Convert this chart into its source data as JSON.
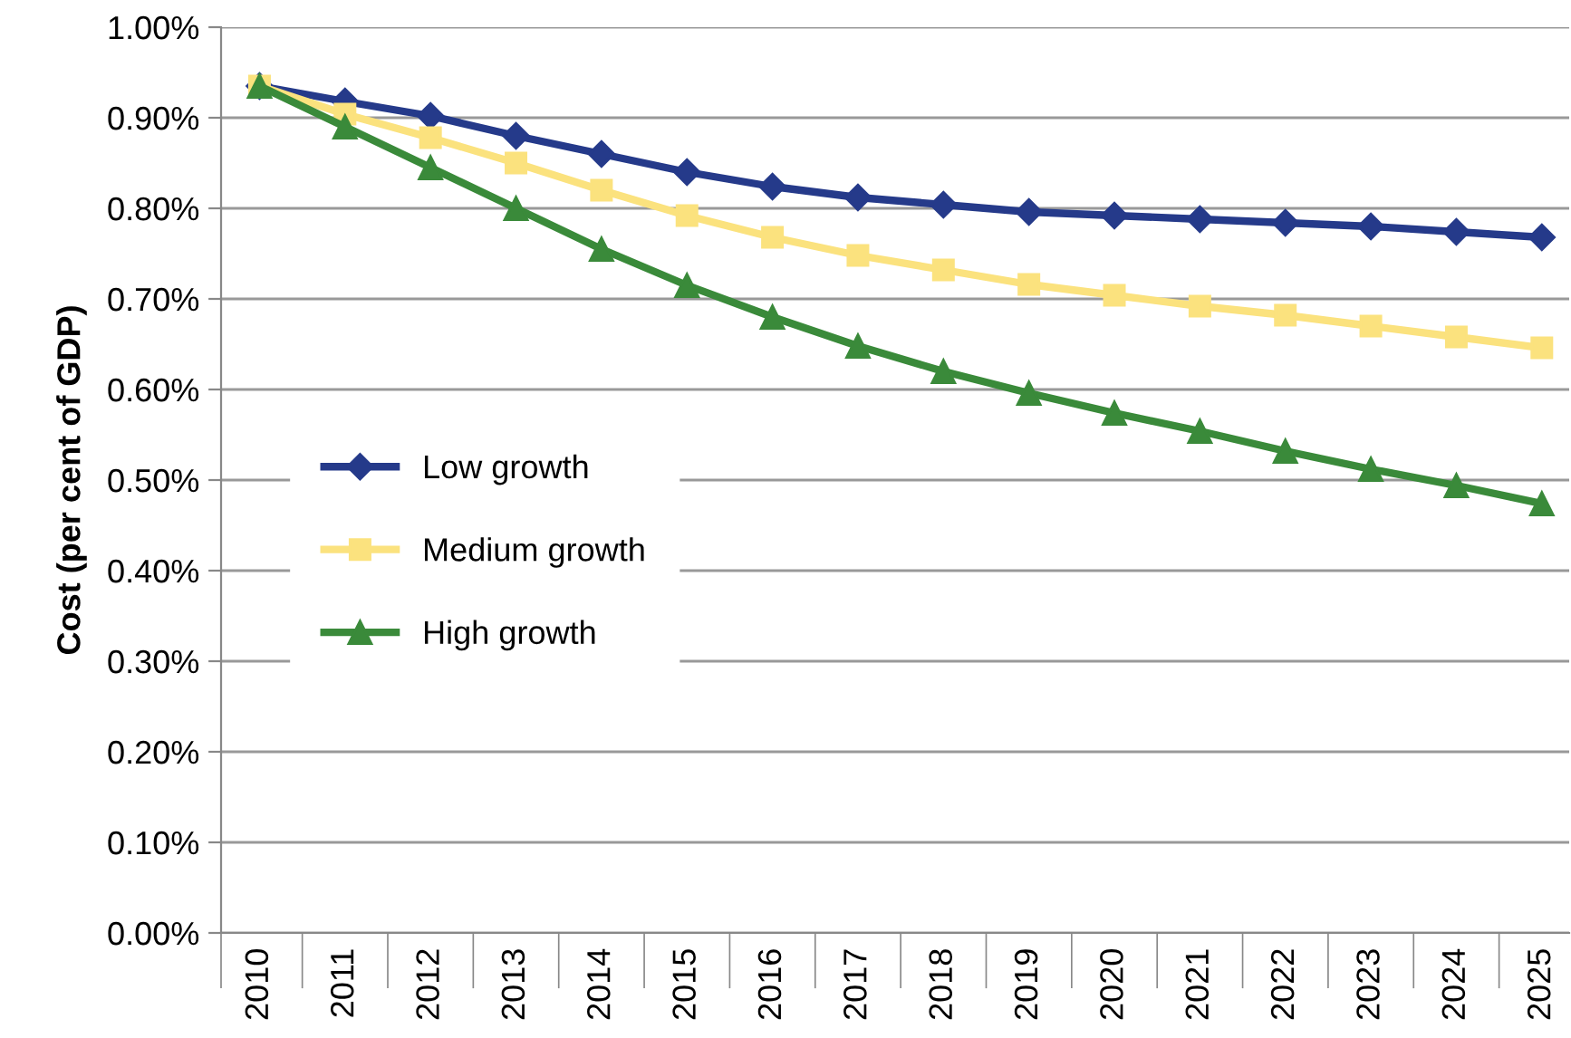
{
  "chart_data": {
    "type": "line",
    "ylabel": "Cost (per cent of GDP)",
    "categories": [
      "2010",
      "2011",
      "2012",
      "2013",
      "2014",
      "2015",
      "2016",
      "2017",
      "2018",
      "2019",
      "2020",
      "2021",
      "2022",
      "2023",
      "2024",
      "2025"
    ],
    "series": [
      {
        "name": "Low growth",
        "color": "#253a8a",
        "marker": "diamond",
        "values": [
          0.935,
          0.918,
          0.902,
          0.88,
          0.86,
          0.84,
          0.824,
          0.812,
          0.804,
          0.796,
          0.792,
          0.788,
          0.784,
          0.78,
          0.774,
          0.768
        ]
      },
      {
        "name": "Medium growth",
        "color": "#fbe27e",
        "marker": "square",
        "values": [
          0.935,
          0.904,
          0.878,
          0.85,
          0.82,
          0.792,
          0.768,
          0.748,
          0.732,
          0.716,
          0.704,
          0.692,
          0.682,
          0.67,
          0.658,
          0.646
        ]
      },
      {
        "name": "High growth",
        "color": "#3a8a3a",
        "marker": "triangle",
        "values": [
          0.935,
          0.89,
          0.845,
          0.8,
          0.755,
          0.715,
          0.68,
          0.648,
          0.62,
          0.596,
          0.574,
          0.554,
          0.532,
          0.512,
          0.494,
          0.474
        ]
      }
    ],
    "ylim": [
      0,
      1.0
    ],
    "yticks": [
      {
        "value": 0,
        "label": "0.00%"
      },
      {
        "value": 0.1,
        "label": "0.10%"
      },
      {
        "value": 0.2,
        "label": "0.20%"
      },
      {
        "value": 0.3,
        "label": "0.30%"
      },
      {
        "value": 0.4,
        "label": "0.40%"
      },
      {
        "value": 0.5,
        "label": "0.50%"
      },
      {
        "value": 0.6,
        "label": "0.60%"
      },
      {
        "value": 0.7,
        "label": "0.70%"
      },
      {
        "value": 0.8,
        "label": "0.80%"
      },
      {
        "value": 0.9,
        "label": "0.90%"
      },
      {
        "value": 1.0,
        "label": "1.00%"
      }
    ],
    "grid": "y",
    "legend": "left",
    "line_style": "solid"
  }
}
